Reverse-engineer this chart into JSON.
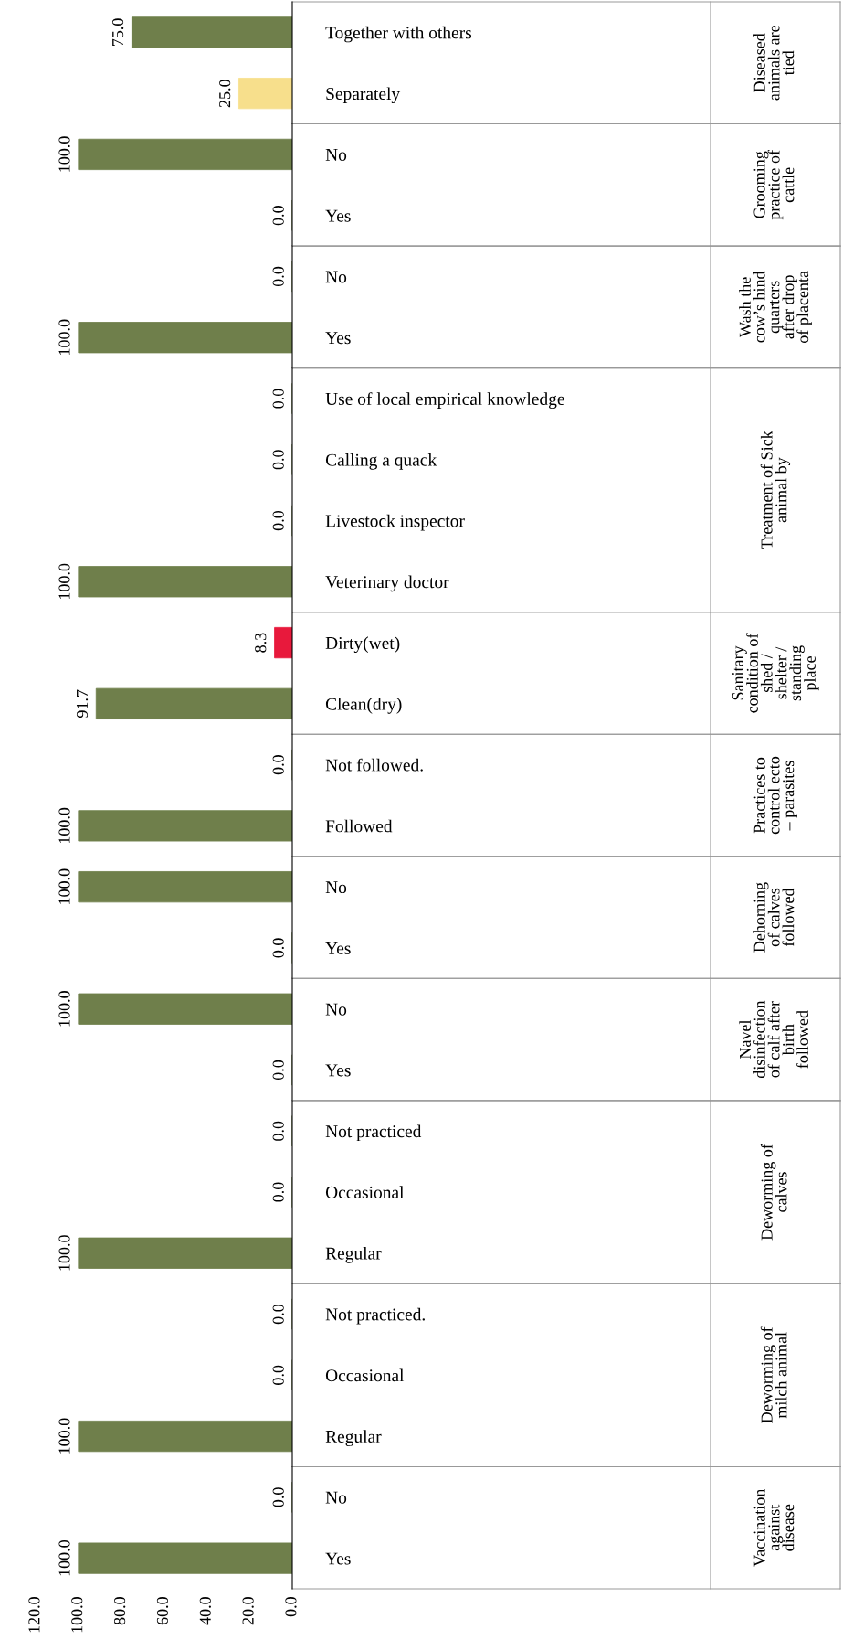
{
  "chart_data": [
    {
      "type": "bar",
      "orientation": "horizontal",
      "ylabel": "Diseased\nanimals are\ntied",
      "categories": [
        "Together with others",
        "Separately"
      ],
      "values": [
        75.0,
        25.0
      ],
      "colors": [
        "#6f7f4b",
        "#f7df8c"
      ],
      "value_labels": [
        "75.0",
        "25.0"
      ],
      "xlim": [
        120,
        0
      ],
      "tick_labels": "y",
      "grid": false,
      "legend": false
    },
    {
      "type": "bar",
      "orientation": "horizontal",
      "ylabel": "Grooming\npractice of\ncattle",
      "categories": [
        "No",
        "Yes"
      ],
      "values": [
        100.0,
        0.0
      ],
      "colors": [
        "#6f7f4b",
        "#6f7f4b"
      ],
      "value_labels": [
        "100.0",
        "0.0"
      ],
      "xlim": [
        120,
        0
      ],
      "tick_labels": "y",
      "grid": false,
      "legend": false
    },
    {
      "type": "bar",
      "orientation": "horizontal",
      "ylabel": "Wash the\ncow’s hind\nquarters\nafter drop\nof placenta",
      "categories": [
        "No",
        "Yes"
      ],
      "values": [
        0.0,
        100.0
      ],
      "colors": [
        "#6f7f4b",
        "#6f7f4b"
      ],
      "value_labels": [
        "0.0",
        "100.0"
      ],
      "xlim": [
        120,
        0
      ],
      "tick_labels": "y",
      "grid": false,
      "legend": false
    },
    {
      "type": "bar",
      "orientation": "horizontal",
      "ylabel": "Treatment of Sick\nanimal by",
      "categories": [
        "Use of local empirical knowledge",
        "Calling a quack",
        "Livestock inspector",
        "Veterinary doctor"
      ],
      "values": [
        0.0,
        0.0,
        0.0,
        100.0
      ],
      "colors": [
        "#6f7f4b",
        "#6f7f4b",
        "#6f7f4b",
        "#6f7f4b"
      ],
      "value_labels": [
        "0.0",
        "0.0",
        "0.0",
        "100.0"
      ],
      "xlim": [
        120,
        0
      ],
      "tick_labels": "y",
      "grid": false,
      "legend": false
    },
    {
      "type": "bar",
      "orientation": "horizontal",
      "ylabel": "Sanitary\ncondition of\nshed /\nshelter /\nstanding\nplace",
      "categories": [
        "Dirty(wet)",
        "Clean(dry)"
      ],
      "values": [
        8.3,
        91.7
      ],
      "colors": [
        "#e8193c",
        "#6f7f4b"
      ],
      "value_labels": [
        "8.3",
        "91.7"
      ],
      "xlim": [
        120,
        0
      ],
      "tick_labels": "y",
      "grid": false,
      "legend": false
    },
    {
      "type": "bar",
      "orientation": "horizontal",
      "ylabel": "Practices to\ncontrol ecto\n– parasites",
      "categories": [
        "Not followed.",
        "Followed"
      ],
      "values": [
        0.0,
        100.0
      ],
      "colors": [
        "#6f7f4b",
        "#6f7f4b"
      ],
      "value_labels": [
        "0.0",
        "100.0"
      ],
      "xlim": [
        120,
        0
      ],
      "tick_labels": "y",
      "grid": false,
      "legend": false
    },
    {
      "type": "bar",
      "orientation": "horizontal",
      "ylabel": "Dehorning\nof calves\nfollowed",
      "categories": [
        "No",
        "Yes"
      ],
      "values": [
        100.0,
        0.0
      ],
      "colors": [
        "#6f7f4b",
        "#6f7f4b"
      ],
      "value_labels": [
        "100.0",
        "0.0"
      ],
      "xlim": [
        120,
        0
      ],
      "tick_labels": "y",
      "grid": false,
      "legend": false
    },
    {
      "type": "bar",
      "orientation": "horizontal",
      "ylabel": "Navel\ndisinfection\nof calf after\nbirth\nfollowed",
      "categories": [
        "No",
        "Yes"
      ],
      "values": [
        100.0,
        0.0
      ],
      "colors": [
        "#6f7f4b",
        "#6f7f4b"
      ],
      "value_labels": [
        "100.0",
        "0.0"
      ],
      "xlim": [
        120,
        0
      ],
      "tick_labels": "y",
      "grid": false,
      "legend": false
    },
    {
      "type": "bar",
      "orientation": "horizontal",
      "ylabel": "Deworming of\ncalves",
      "categories": [
        "Not practiced",
        "Occasional",
        "Regular"
      ],
      "values": [
        0.0,
        0.0,
        100.0
      ],
      "colors": [
        "#6f7f4b",
        "#6f7f4b",
        "#6f7f4b"
      ],
      "value_labels": [
        "0.0",
        "0.0",
        "100.0"
      ],
      "xlim": [
        120,
        0
      ],
      "tick_labels": "y",
      "grid": false,
      "legend": false
    },
    {
      "type": "bar",
      "orientation": "horizontal",
      "ylabel": "Deworming of\nmilch animal",
      "categories": [
        "Not practiced.",
        "Occasional",
        "Regular"
      ],
      "values": [
        0.0,
        0.0,
        100.0
      ],
      "colors": [
        "#6f7f4b",
        "#6f7f4b",
        "#6f7f4b"
      ],
      "value_labels": [
        "0.0",
        "0.0",
        "100.0"
      ],
      "xlim": [
        120,
        0
      ],
      "tick_labels": "y",
      "grid": false,
      "legend": false
    },
    {
      "type": "bar",
      "orientation": "horizontal",
      "ylabel": "Vaccination\nagainst\ndisease",
      "categories": [
        "No",
        "Yes"
      ],
      "values": [
        0.0,
        100.0
      ],
      "colors": [
        "#6f7f4b",
        "#6f7f4b"
      ],
      "value_labels": [
        "0.0",
        "100.0"
      ],
      "xlim": [
        120,
        0
      ],
      "xticks": [
        {
          "value": 120,
          "label": "120.0"
        },
        {
          "value": 100,
          "label": "100.0"
        },
        {
          "value": 80,
          "label": "80.0"
        },
        {
          "value": 60,
          "label": "60.0"
        },
        {
          "value": 40,
          "label": "40.0"
        },
        {
          "value": 20,
          "label": "20.0"
        },
        {
          "value": 0,
          "label": "0.0"
        }
      ],
      "grid": false,
      "legend": false
    }
  ]
}
